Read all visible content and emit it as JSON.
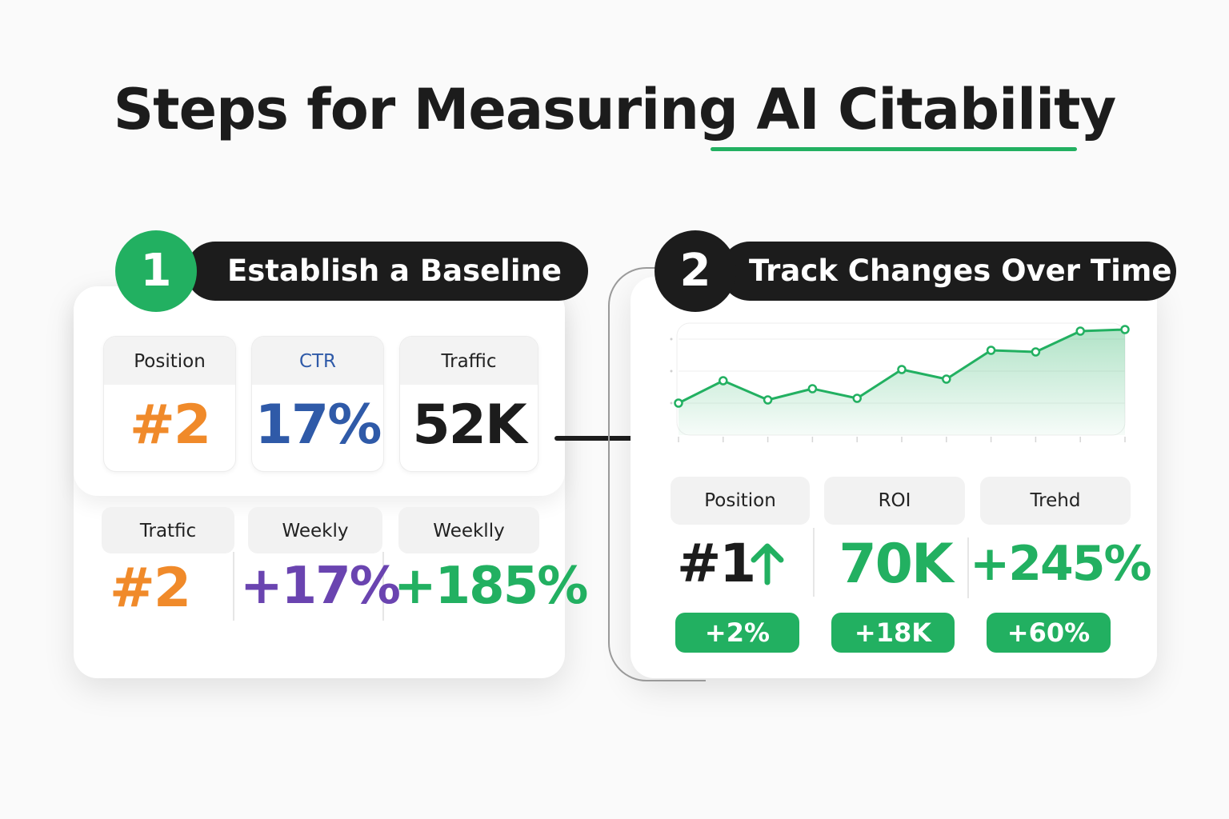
{
  "title": "Steps for Measuring AI Citability",
  "colors": {
    "green": "#22b061",
    "orange": "#f08a2a",
    "blue": "#2f5aa8",
    "purple": "#6a44b0",
    "dark": "#1c1c1c"
  },
  "step1": {
    "number": "1",
    "label": "Establish a Baseline",
    "top_metrics": [
      {
        "label": "Position",
        "value": "#2",
        "color": "orange"
      },
      {
        "label": "CTR",
        "value": "17%",
        "color": "blue"
      },
      {
        "label": "Traffic",
        "value": "52K",
        "color": "dark"
      }
    ],
    "bottom_metrics": [
      {
        "label": "Tratfic",
        "value": "#2",
        "color": "orange"
      },
      {
        "label": "Weekly",
        "value": "+17%",
        "color": "purple"
      },
      {
        "label": "Weeklly",
        "value": "+185%",
        "color": "green"
      }
    ]
  },
  "step2": {
    "number": "2",
    "label": "Track Changes Over Time",
    "metrics": [
      {
        "label": "Position",
        "value": "#1",
        "arrow_icon": "arrow-up-icon",
        "change": "+2%"
      },
      {
        "label": "ROI",
        "value": "70K",
        "change": "+18K"
      },
      {
        "label": "Trehd",
        "value": "+245%",
        "change": "+60%"
      }
    ]
  },
  "arrow_icon": "arrow-right-icon",
  "chart_data": {
    "type": "area",
    "title": "",
    "xlabel": "",
    "ylabel": "",
    "x": [
      1,
      2,
      3,
      4,
      5,
      6,
      7,
      8,
      9,
      10,
      11
    ],
    "series": [
      {
        "values": [
          20,
          34,
          22,
          29,
          23,
          41,
          35,
          53,
          52,
          65,
          66
        ]
      }
    ],
    "ylim": [
      0,
      70
    ],
    "grid": true,
    "legend": "none"
  }
}
